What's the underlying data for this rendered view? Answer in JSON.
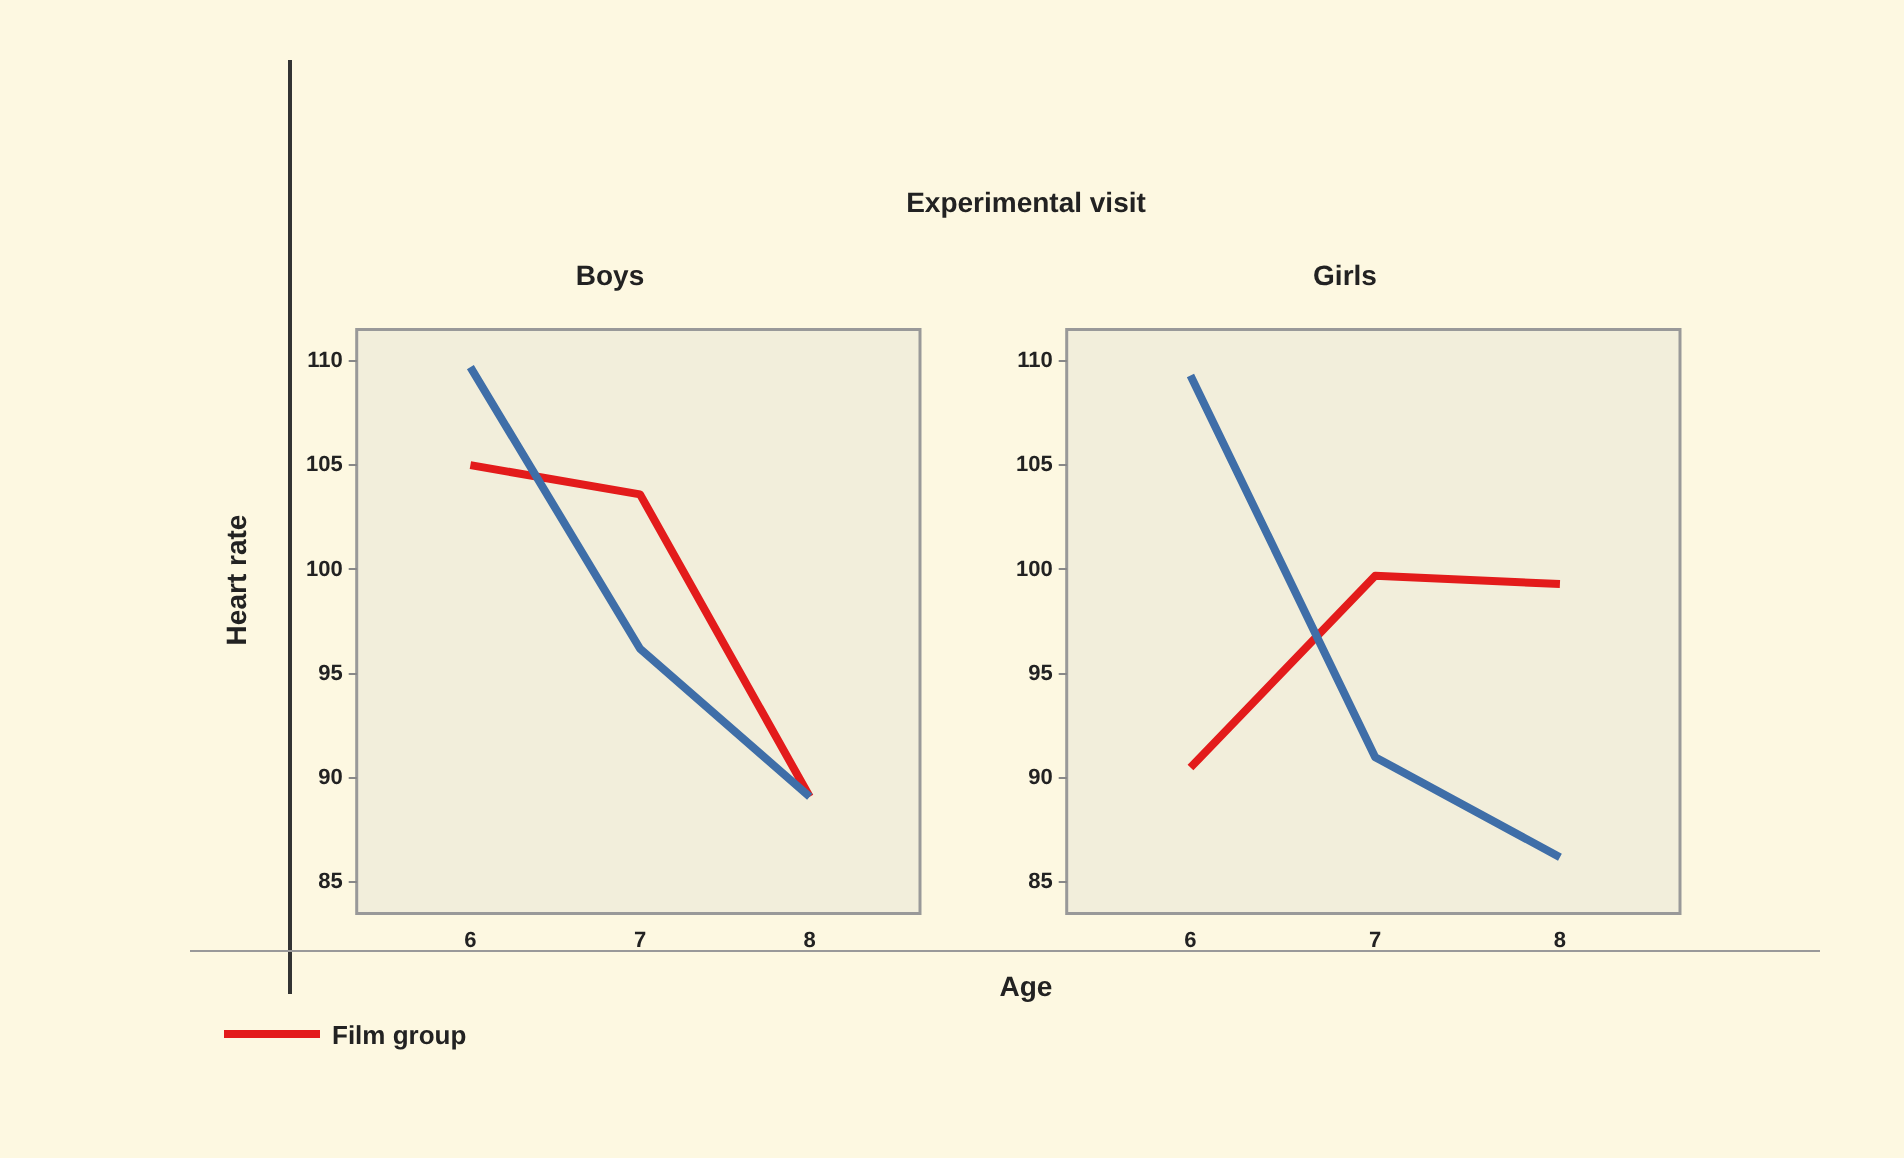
{
  "chart_data": [
    {
      "type": "line",
      "title": "Boys",
      "ylabel": "Heart rate",
      "xlabel": "Age",
      "annotations": [
        "Experimental visit"
      ],
      "legend": "bottom left",
      "x": [
        6,
        7,
        8
      ],
      "xlim": [
        5.33,
        8.65
      ],
      "xticks": [
        6,
        7,
        8
      ],
      "ylim": [
        83.5,
        111.5
      ],
      "yticks": [
        85,
        90,
        95,
        100,
        105,
        110
      ],
      "grid": false,
      "series": [
        {
          "color": "#3f6ea8",
          "values": [
            109.7,
            96.2,
            89.1
          ]
        },
        {
          "name": "Film group",
          "color": "#e31b1b",
          "values": [
            105,
            103.6,
            89.1
          ]
        }
      ]
    },
    {
      "type": "line",
      "title": "Girls",
      "x": [
        6,
        7,
        8
      ],
      "xlim": [
        5.33,
        8.65
      ],
      "xticks": [
        6,
        7,
        8
      ],
      "ylim": [
        83.5,
        111.5
      ],
      "yticks": [
        85,
        90,
        95,
        100,
        105,
        110
      ],
      "grid": false,
      "series": [
        {
          "color": "#3f6ea8",
          "values": [
            109.3,
            91.0,
            86.2
          ]
        },
        {
          "color": "#e31b1b",
          "values": [
            90.5,
            99.7,
            99.3
          ]
        }
      ]
    }
  ]
}
